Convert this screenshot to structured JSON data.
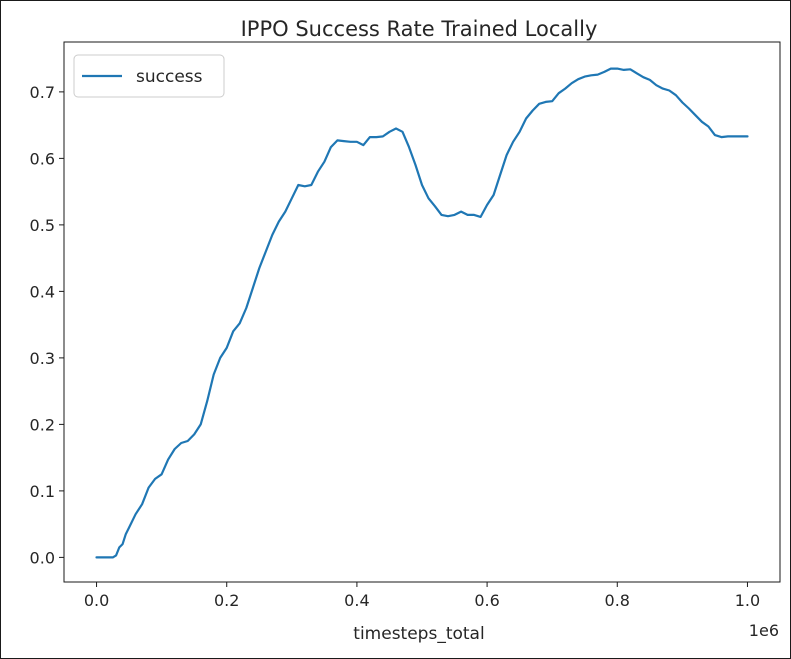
{
  "chart_data": {
    "type": "line",
    "title": "IPPO Success Rate Trained Locally",
    "xlabel": "timesteps_total",
    "ylabel": "",
    "x_offset_text": "1e6",
    "xlim": [
      -0.05,
      1.05
    ],
    "ylim": [
      -0.037,
      0.775
    ],
    "xticks": [
      0.0,
      0.2,
      0.4,
      0.6,
      0.8,
      1.0
    ],
    "xtick_labels": [
      "0.0",
      "0.2",
      "0.4",
      "0.6",
      "0.8",
      "1.0"
    ],
    "yticks": [
      0.0,
      0.1,
      0.2,
      0.3,
      0.4,
      0.5,
      0.6,
      0.7
    ],
    "ytick_labels": [
      "0.0",
      "0.1",
      "0.2",
      "0.3",
      "0.4",
      "0.5",
      "0.6",
      "0.7"
    ],
    "grid": false,
    "legend_position": "top-left",
    "series": [
      {
        "name": "success",
        "color": "#1f77b4",
        "x": [
          0.0,
          0.01,
          0.02,
          0.025,
          0.03,
          0.035,
          0.04,
          0.045,
          0.05,
          0.06,
          0.07,
          0.08,
          0.09,
          0.1,
          0.11,
          0.12,
          0.13,
          0.14,
          0.15,
          0.16,
          0.17,
          0.18,
          0.19,
          0.2,
          0.21,
          0.22,
          0.23,
          0.24,
          0.25,
          0.26,
          0.27,
          0.28,
          0.29,
          0.3,
          0.31,
          0.32,
          0.33,
          0.34,
          0.35,
          0.36,
          0.37,
          0.38,
          0.39,
          0.4,
          0.41,
          0.42,
          0.43,
          0.44,
          0.45,
          0.46,
          0.47,
          0.48,
          0.49,
          0.5,
          0.51,
          0.52,
          0.53,
          0.54,
          0.55,
          0.56,
          0.57,
          0.58,
          0.59,
          0.6,
          0.61,
          0.62,
          0.63,
          0.64,
          0.65,
          0.66,
          0.67,
          0.68,
          0.69,
          0.7,
          0.71,
          0.72,
          0.73,
          0.74,
          0.75,
          0.76,
          0.77,
          0.78,
          0.79,
          0.8,
          0.81,
          0.82,
          0.83,
          0.84,
          0.85,
          0.86,
          0.87,
          0.88,
          0.89,
          0.9,
          0.91,
          0.92,
          0.93,
          0.94,
          0.95,
          0.96,
          0.97,
          0.98,
          0.99,
          1.0
        ],
        "y": [
          0.0,
          0.0,
          0.0,
          0.0,
          0.003,
          0.015,
          0.02,
          0.035,
          0.045,
          0.065,
          0.08,
          0.105,
          0.118,
          0.125,
          0.147,
          0.163,
          0.172,
          0.175,
          0.185,
          0.2,
          0.235,
          0.275,
          0.3,
          0.315,
          0.34,
          0.352,
          0.375,
          0.405,
          0.435,
          0.46,
          0.485,
          0.505,
          0.52,
          0.54,
          0.56,
          0.558,
          0.56,
          0.58,
          0.595,
          0.617,
          0.627,
          0.626,
          0.625,
          0.625,
          0.62,
          0.632,
          0.632,
          0.633,
          0.64,
          0.645,
          0.64,
          0.617,
          0.59,
          0.56,
          0.54,
          0.528,
          0.515,
          0.513,
          0.515,
          0.52,
          0.515,
          0.515,
          0.512,
          0.53,
          0.545,
          0.575,
          0.605,
          0.625,
          0.64,
          0.66,
          0.672,
          0.682,
          0.685,
          0.686,
          0.698,
          0.705,
          0.713,
          0.719,
          0.723,
          0.725,
          0.726,
          0.73,
          0.735,
          0.735,
          0.733,
          0.734,
          0.728,
          0.722,
          0.718,
          0.71,
          0.705,
          0.702,
          0.695,
          0.684,
          0.675,
          0.665,
          0.655,
          0.648,
          0.635,
          0.632,
          0.633,
          0.633,
          0.633,
          0.633
        ]
      }
    ]
  }
}
